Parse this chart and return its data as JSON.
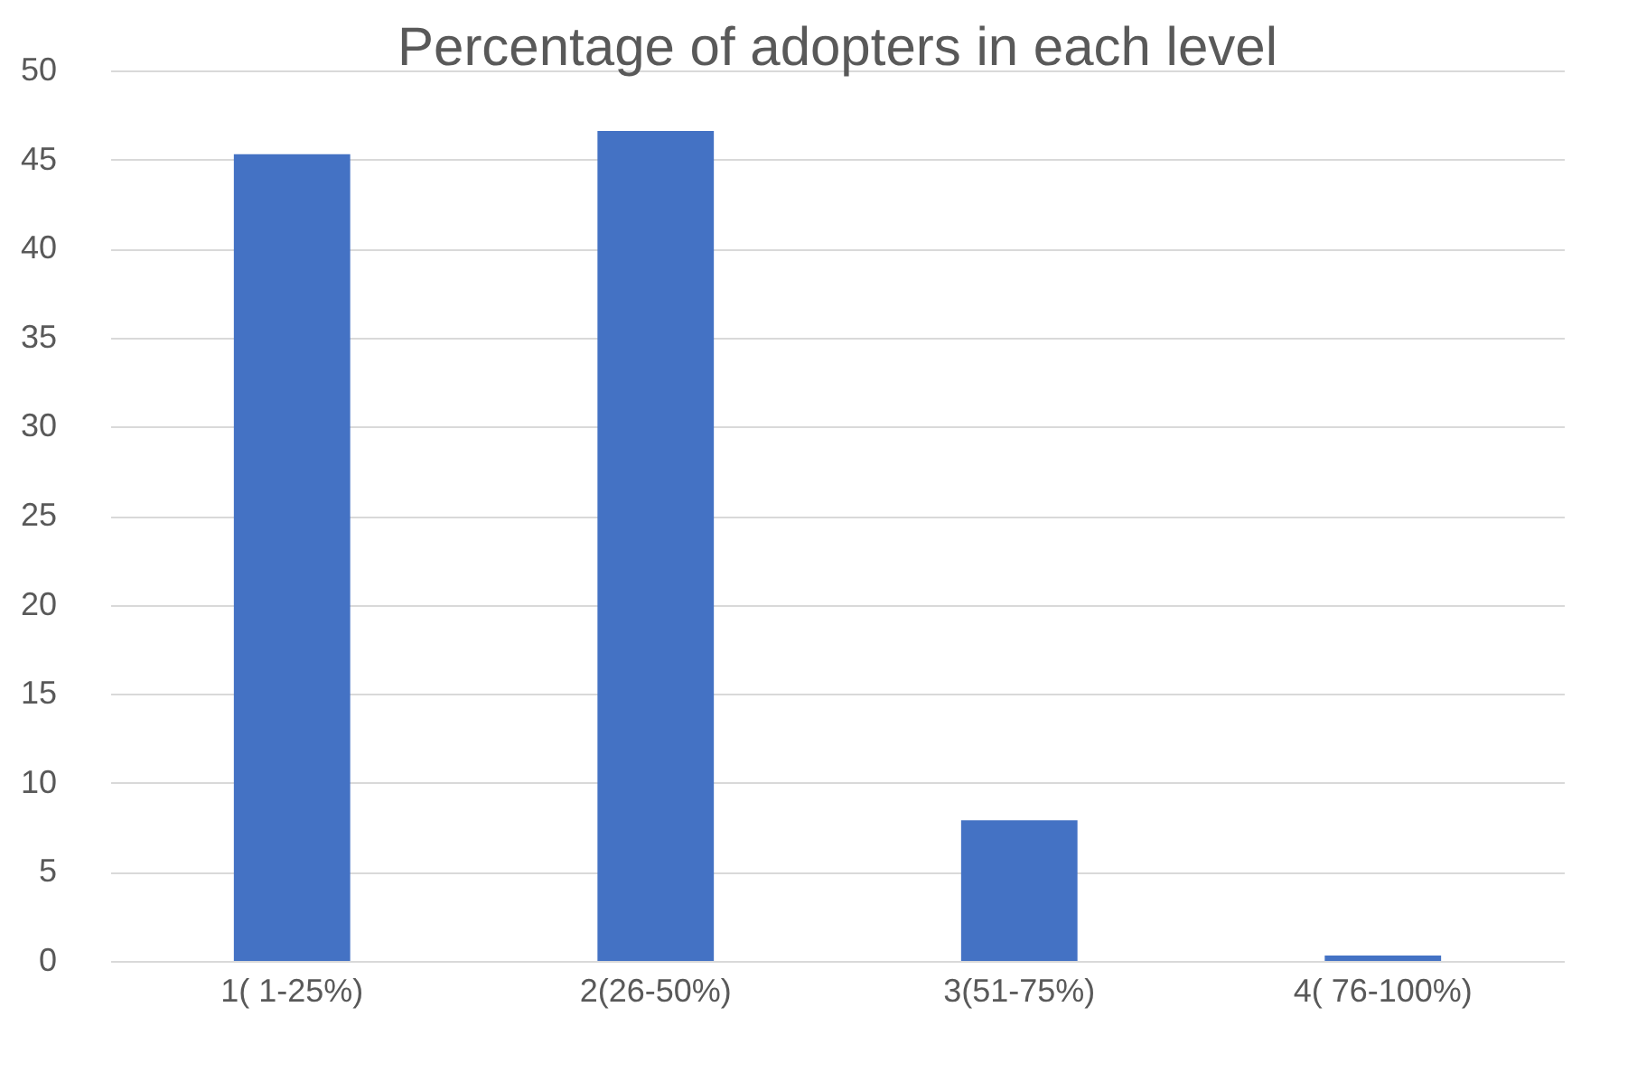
{
  "chart_data": {
    "type": "bar",
    "title": "Percentage of adopters in each level",
    "categories": [
      "1( 1-25%)",
      "2(26-50%)",
      "3(51-75%)",
      "4( 76-100%)"
    ],
    "values": [
      45.3,
      46.6,
      7.9,
      0.3
    ],
    "color": "#4472c4",
    "ylim": [
      0,
      50
    ],
    "yticks": [
      0,
      5,
      10,
      15,
      20,
      25,
      30,
      35,
      40,
      45,
      50
    ],
    "grid": "y"
  }
}
